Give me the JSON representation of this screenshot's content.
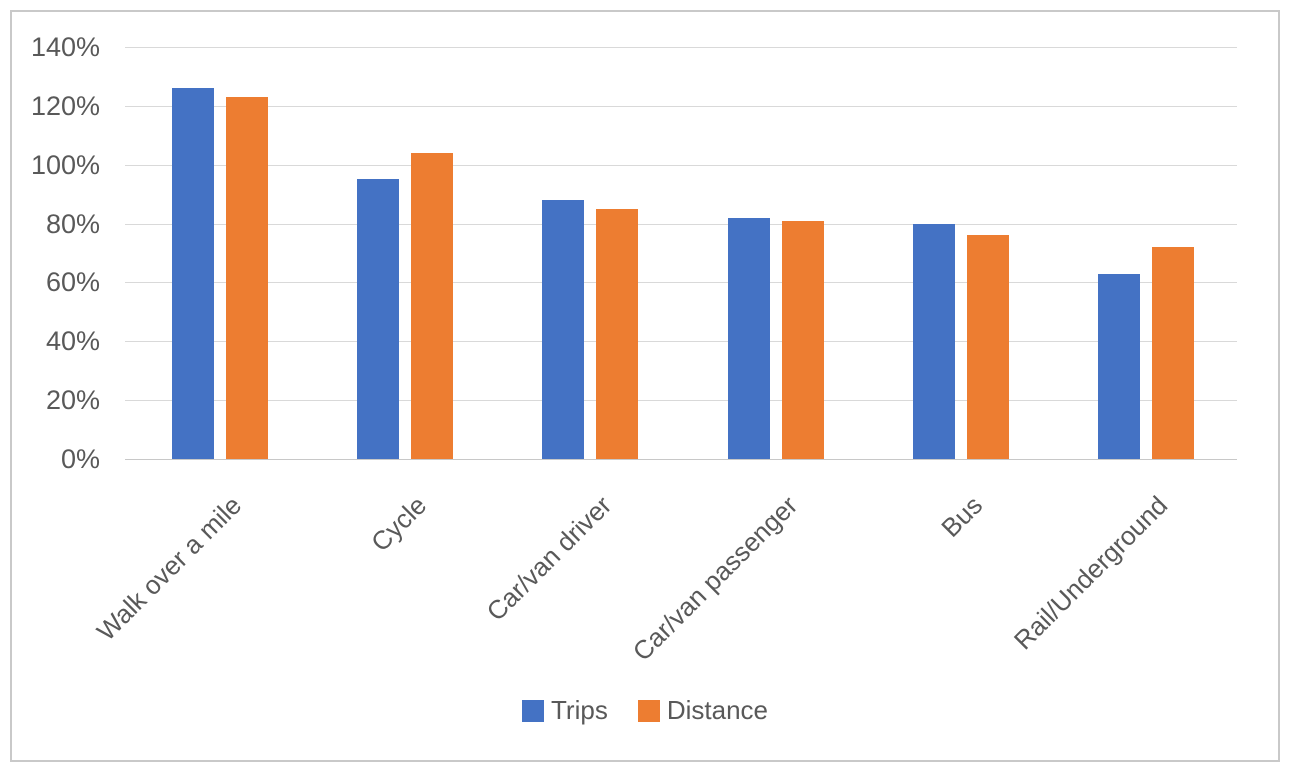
{
  "chart_data": {
    "type": "bar",
    "title": "",
    "xlabel": "",
    "ylabel": "",
    "categories": [
      "Walk over a mile",
      "Cycle",
      "Car/van driver",
      "Car/van passenger",
      "Bus",
      "Rail/Underground"
    ],
    "series": [
      {
        "name": "Trips",
        "color": "#4472C4",
        "values": [
          126,
          95,
          88,
          82,
          80,
          63
        ]
      },
      {
        "name": "Distance",
        "color": "#ED7D31",
        "values": [
          123,
          104,
          85,
          81,
          76,
          72
        ]
      }
    ],
    "ylim": [
      0,
      140
    ],
    "ytick_step": 20,
    "yticks": [
      "0%",
      "20%",
      "40%",
      "60%",
      "80%",
      "100%",
      "120%",
      "140%"
    ],
    "grid": true,
    "legend_position": "bottom",
    "category_label_rotation_deg": -45
  },
  "colors": {
    "background": "#FFFFFF",
    "chart_border": "#C9C9C9",
    "gridline": "#D9D9D9",
    "axis_line": "#C8C8C8",
    "axis_text": "#595959",
    "trips_bar": "#4472C4",
    "distance_bar": "#ED7D31"
  }
}
